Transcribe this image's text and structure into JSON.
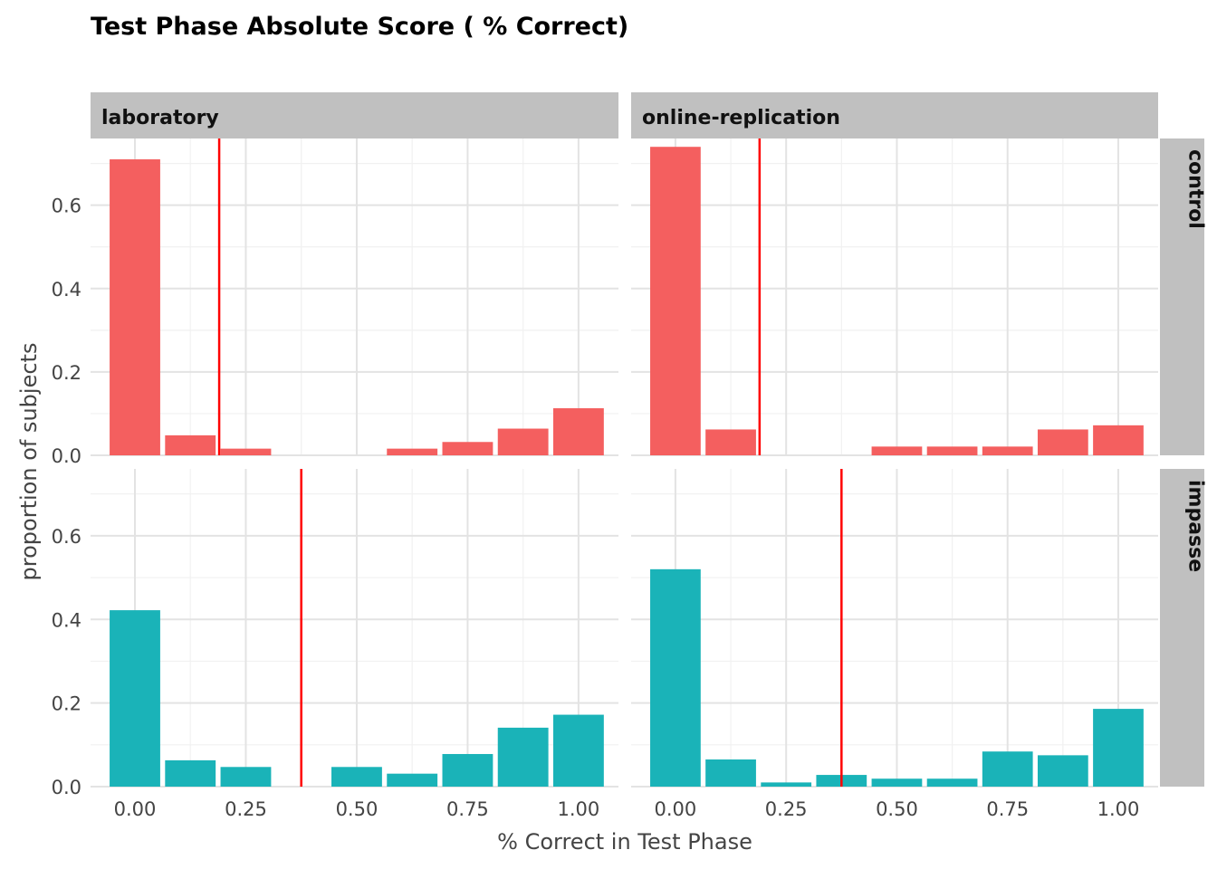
{
  "chart_data": {
    "type": "bar",
    "title": "Test Phase Absolute Score ( % Correct)",
    "xlabel": "% Correct in Test Phase",
    "ylabel": "proportion of subjects",
    "x_ticks": [
      "0.00",
      "0.25",
      "0.50",
      "0.75",
      "1.00"
    ],
    "y_ticks": [
      "0.0",
      "0.2",
      "0.4",
      "0.6"
    ],
    "ylim": [
      0,
      0.76
    ],
    "xlim": [
      -0.1,
      1.09
    ],
    "grid": true,
    "facet_columns": [
      "laboratory",
      "online-replication"
    ],
    "facet_rows": [
      "control",
      "impasse"
    ],
    "bin_centers": [
      0.0,
      0.125,
      0.25,
      0.375,
      0.5,
      0.625,
      0.75,
      0.875,
      1.0
    ],
    "colors": {
      "control": "#f45f5f",
      "impasse": "#1ab3b8",
      "mean_line": "#ff0000"
    },
    "panels": [
      {
        "column": "laboratory",
        "row": "control",
        "mean": 0.19,
        "values": [
          0.71,
          0.048,
          0.016,
          0,
          0,
          0.016,
          0.032,
          0.064,
          0.113
        ]
      },
      {
        "column": "online-replication",
        "row": "control",
        "mean": 0.19,
        "values": [
          0.74,
          0.062,
          0,
          0,
          0.021,
          0.021,
          0.021,
          0.062,
          0.072
        ]
      },
      {
        "column": "laboratory",
        "row": "impasse",
        "mean": 0.375,
        "values": [
          0.422,
          0.063,
          0.047,
          0,
          0.047,
          0.031,
          0.078,
          0.141,
          0.172
        ]
      },
      {
        "column": "online-replication",
        "row": "impasse",
        "mean": 0.375,
        "values": [
          0.52,
          0.065,
          0.01,
          0.028,
          0.019,
          0.019,
          0.084,
          0.075,
          0.186
        ]
      }
    ]
  }
}
